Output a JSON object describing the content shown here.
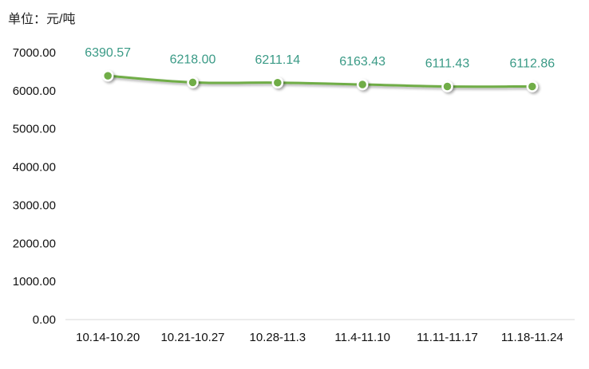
{
  "unit_label": "单位：元/吨",
  "chart_data": {
    "type": "line",
    "categories": [
      "10.14-10.20",
      "10.21-10.27",
      "10.28-11.3",
      "11.4-11.10",
      "11.11-11.17",
      "11.18-11.24"
    ],
    "series": [
      {
        "values": [
          6390.57,
          6218.0,
          6211.14,
          6163.43,
          6111.43,
          6112.86
        ]
      }
    ],
    "data_labels": [
      "6390.57",
      "6218.00",
      "6211.14",
      "6163.43",
      "6111.43",
      "6112.86"
    ],
    "yticks": [
      "0.00",
      "1000.00",
      "2000.00",
      "3000.00",
      "4000.00",
      "5000.00",
      "6000.00",
      "7000.00"
    ],
    "ylim": [
      0,
      7000
    ],
    "grid": false,
    "colors": {
      "line": "#70ad47",
      "marker_fill": "#70ad47",
      "marker_stroke": "#ffffff",
      "label": "#3a9a86",
      "axis": "#d9d9d9"
    }
  }
}
